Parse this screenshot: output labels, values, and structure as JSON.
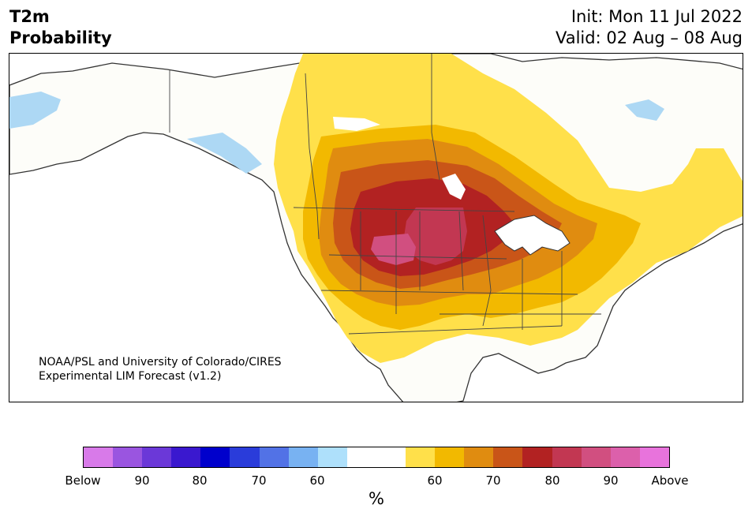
{
  "title": {
    "left_line1": "T2m",
    "left_line2": "Probability",
    "init": "Init: Mon 11 Jul 2022",
    "valid": "Valid: 02 Aug – 08 Aug"
  },
  "credit": {
    "line1": "NOAA/PSL and University of Colorado/CIRES",
    "line2": "Experimental LIM Forecast (v1.2)"
  },
  "colorbar": {
    "colors": [
      "#d87ae9",
      "#9a55e0",
      "#6b38d8",
      "#3a18cf",
      "#0000cc",
      "#2a3cda",
      "#5272e6",
      "#78b2f2",
      "#aee0fb",
      "#ffffff",
      "#ffffff",
      "#ffe04a",
      "#f2b900",
      "#e08c10",
      "#c95518",
      "#b22222",
      "#c23752",
      "#d14f80",
      "#dc60ab",
      "#e873dc"
    ],
    "tick_labels": [
      "Below",
      "90",
      "80",
      "70",
      "60",
      "60",
      "70",
      "80",
      "90",
      "Above"
    ],
    "unit": "%"
  },
  "map": {
    "ocean_color": "#ffffff",
    "land_color": "#fdfdf9",
    "water_color": "#add8f4",
    "prob_colors": {
      "p50": "#ffe04a",
      "p60": "#f2b900",
      "p65": "#e08c10",
      "p70": "#c95518",
      "p75": "#b22222",
      "p80": "#c23752",
      "p85": "#d14f80"
    }
  }
}
